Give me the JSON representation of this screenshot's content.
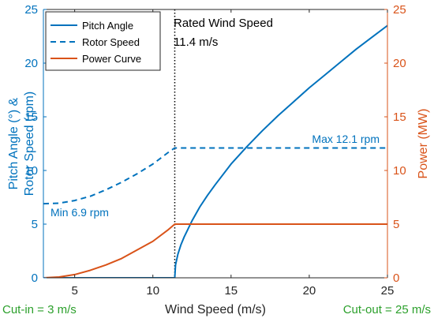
{
  "chart_data": {
    "type": "line",
    "xlabel": "Wind Speed (m/s)",
    "ylabel_left_line1": "Pitch Angle (°) &",
    "ylabel_left_line2": "Rotor Speed (rpm)",
    "ylabel_right": "Power (MW)",
    "xlim": [
      3,
      25
    ],
    "ylim_left": [
      0,
      25
    ],
    "ylim_right": [
      0,
      25
    ],
    "x_ticks": [
      5,
      10,
      15,
      20,
      25
    ],
    "y_ticks_left": [
      0,
      5,
      10,
      15,
      20,
      25
    ],
    "y_ticks_right": [
      0,
      5,
      10,
      15,
      20,
      25
    ],
    "grid": false,
    "legend_position": "top-left",
    "series": [
      {
        "name": "Pitch Angle",
        "axis": "left",
        "color": "#0072BD",
        "style": "solid",
        "x": [
          3,
          11.4,
          11.45,
          11.6,
          11.8,
          12.0,
          12.5,
          13.0,
          13.5,
          14.0,
          15.0,
          16.0,
          17.0,
          18.0,
          19.0,
          20.0,
          21.0,
          22.0,
          23.0,
          24.0,
          25.0
        ],
        "y": [
          0,
          0,
          1.2,
          2.2,
          3.1,
          3.8,
          5.3,
          6.6,
          7.7,
          8.7,
          10.6,
          12.2,
          13.7,
          15.1,
          16.4,
          17.7,
          18.9,
          20.1,
          21.3,
          22.4,
          23.5
        ]
      },
      {
        "name": "Rotor Speed",
        "axis": "left",
        "color": "#0072BD",
        "style": "dashed",
        "x": [
          3,
          4,
          5,
          6,
          7,
          8,
          9,
          10,
          11,
          11.4,
          25
        ],
        "y": [
          6.9,
          6.95,
          7.2,
          7.6,
          8.2,
          8.9,
          9.7,
          10.6,
          11.7,
          12.1,
          12.1
        ]
      },
      {
        "name": "Power Curve",
        "axis": "right",
        "color": "#D95319",
        "style": "solid",
        "x": [
          3,
          4,
          5,
          6,
          7,
          8,
          9,
          10,
          11,
          11.4,
          25
        ],
        "y": [
          0,
          0.07,
          0.3,
          0.7,
          1.2,
          1.8,
          2.6,
          3.4,
          4.5,
          5,
          5
        ]
      }
    ],
    "rated_line_x": 11.4,
    "annotations": {
      "rated_title": "Rated Wind Speed",
      "rated_value": "11.4 m/s",
      "max_label": "Max 12.1 rpm",
      "min_label": "Min 6.9 rpm",
      "cut_in": "Cut-in = 3 m/s",
      "cut_out": "Cut-out = 25 m/s"
    },
    "colors": {
      "left_axis": "#0072BD",
      "right_axis": "#D95319",
      "cut_labels": "#2CA02C"
    }
  }
}
